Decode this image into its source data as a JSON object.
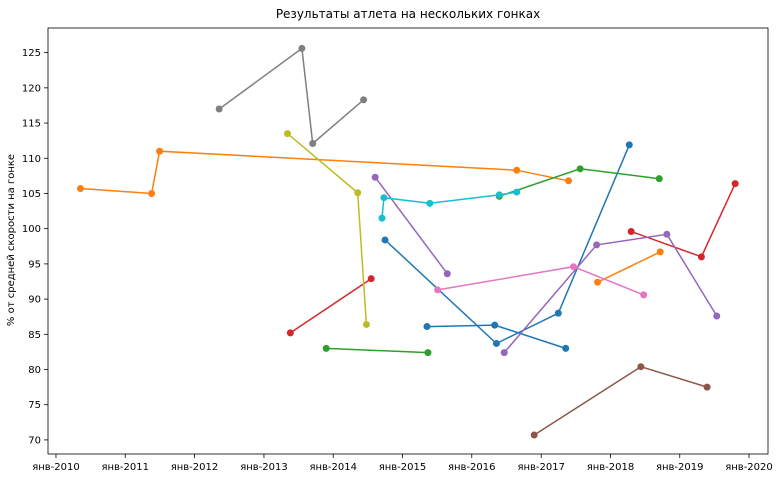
{
  "chart_data": {
    "type": "line",
    "title": "Результаты атлета на нескольких гонках",
    "xlabel": "",
    "ylabel": "% от средней скорости на гонке",
    "xlim": [
      "2009-11-20",
      "2020-04-10"
    ],
    "ylim": [
      68,
      128.5
    ],
    "x_ticks": [
      {
        "date": "2010-01-01",
        "label": "янв-2010"
      },
      {
        "date": "2011-01-01",
        "label": "янв-2011"
      },
      {
        "date": "2012-01-01",
        "label": "янв-2012"
      },
      {
        "date": "2013-01-01",
        "label": "янв-2013"
      },
      {
        "date": "2014-01-01",
        "label": "янв-2014"
      },
      {
        "date": "2015-01-01",
        "label": "янв-2015"
      },
      {
        "date": "2016-01-01",
        "label": "янв-2016"
      },
      {
        "date": "2017-01-01",
        "label": "янв-2017"
      },
      {
        "date": "2018-01-01",
        "label": "янв-2018"
      },
      {
        "date": "2019-01-01",
        "label": "янв-2019"
      },
      {
        "date": "2020-01-01",
        "label": "янв-2020"
      }
    ],
    "y_ticks": [
      70,
      75,
      80,
      85,
      90,
      95,
      100,
      105,
      110,
      115,
      120,
      125
    ],
    "grid": false,
    "series": [
      {
        "color": "#1f77b4",
        "points": [
          {
            "x": "2014-10-01",
            "y": 98.4
          },
          {
            "x": "2016-05-10",
            "y": 83.7
          },
          {
            "x": "2017-04-01",
            "y": 88.0
          },
          {
            "x": "2018-04-10",
            "y": 111.9
          }
        ]
      },
      {
        "color": "#1f77b4",
        "points": [
          {
            "x": "2015-05-10",
            "y": 86.1
          },
          {
            "x": "2016-05-01",
            "y": 86.3
          },
          {
            "x": "2017-05-10",
            "y": 83.0
          }
        ]
      },
      {
        "color": "#ff7f0e",
        "points": [
          {
            "x": "2010-05-10",
            "y": 105.7
          },
          {
            "x": "2011-05-20",
            "y": 105.0
          },
          {
            "x": "2011-07-01",
            "y": 111.0
          },
          {
            "x": "2016-08-25",
            "y": 108.3
          },
          {
            "x": "2017-05-25",
            "y": 106.8
          }
        ]
      },
      {
        "color": "#ff7f0e",
        "points": [
          {
            "x": "2017-10-25",
            "y": 92.4
          },
          {
            "x": "2018-09-20",
            "y": 96.7
          }
        ]
      },
      {
        "color": "#2ca02c",
        "points": [
          {
            "x": "2016-05-25",
            "y": 104.6
          },
          {
            "x": "2017-07-25",
            "y": 108.5
          },
          {
            "x": "2018-09-15",
            "y": 107.1
          }
        ]
      },
      {
        "color": "#2ca02c",
        "points": [
          {
            "x": "2013-11-25",
            "y": 83.0
          },
          {
            "x": "2015-05-15",
            "y": 82.4
          }
        ]
      },
      {
        "color": "#d62728",
        "points": [
          {
            "x": "2018-04-20",
            "y": 99.6
          },
          {
            "x": "2019-04-25",
            "y": 96.0
          },
          {
            "x": "2019-10-20",
            "y": 106.4
          }
        ]
      },
      {
        "color": "#d62728",
        "points": [
          {
            "x": "2013-05-20",
            "y": 85.2
          },
          {
            "x": "2014-07-20",
            "y": 92.9
          }
        ]
      },
      {
        "color": "#9467bd",
        "points": [
          {
            "x": "2014-08-10",
            "y": 107.3
          },
          {
            "x": "2015-08-25",
            "y": 93.6
          }
        ]
      },
      {
        "color": "#9467bd",
        "points": [
          {
            "x": "2016-06-20",
            "y": 82.4
          },
          {
            "x": "2017-10-20",
            "y": 97.7
          },
          {
            "x": "2018-10-25",
            "y": 99.2
          },
          {
            "x": "2019-07-15",
            "y": 87.6
          }
        ]
      },
      {
        "color": "#8c564b",
        "points": [
          {
            "x": "2016-11-25",
            "y": 70.7
          },
          {
            "x": "2018-06-10",
            "y": 80.4
          },
          {
            "x": "2019-05-25",
            "y": 77.5
          }
        ]
      },
      {
        "color": "#e377c2",
        "points": [
          {
            "x": "2015-07-05",
            "y": 91.3
          },
          {
            "x": "2017-06-20",
            "y": 94.6
          },
          {
            "x": "2018-06-25",
            "y": 90.6
          }
        ]
      },
      {
        "color": "#7f7f7f",
        "points": [
          {
            "x": "2012-05-10",
            "y": 117.0
          },
          {
            "x": "2013-07-20",
            "y": 125.6
          },
          {
            "x": "2013-09-15",
            "y": 112.1
          },
          {
            "x": "2014-06-10",
            "y": 118.3
          }
        ]
      },
      {
        "color": "#bcbd22",
        "points": [
          {
            "x": "2013-05-05",
            "y": 113.5
          },
          {
            "x": "2014-05-10",
            "y": 105.1
          },
          {
            "x": "2014-06-25",
            "y": 86.4
          }
        ]
      },
      {
        "color": "#17becf",
        "points": [
          {
            "x": "2014-09-15",
            "y": 101.5
          },
          {
            "x": "2014-09-25",
            "y": 104.4
          },
          {
            "x": "2015-05-25",
            "y": 103.6
          },
          {
            "x": "2016-05-25",
            "y": 104.8
          },
          {
            "x": "2016-08-25",
            "y": 105.2
          }
        ]
      }
    ]
  }
}
